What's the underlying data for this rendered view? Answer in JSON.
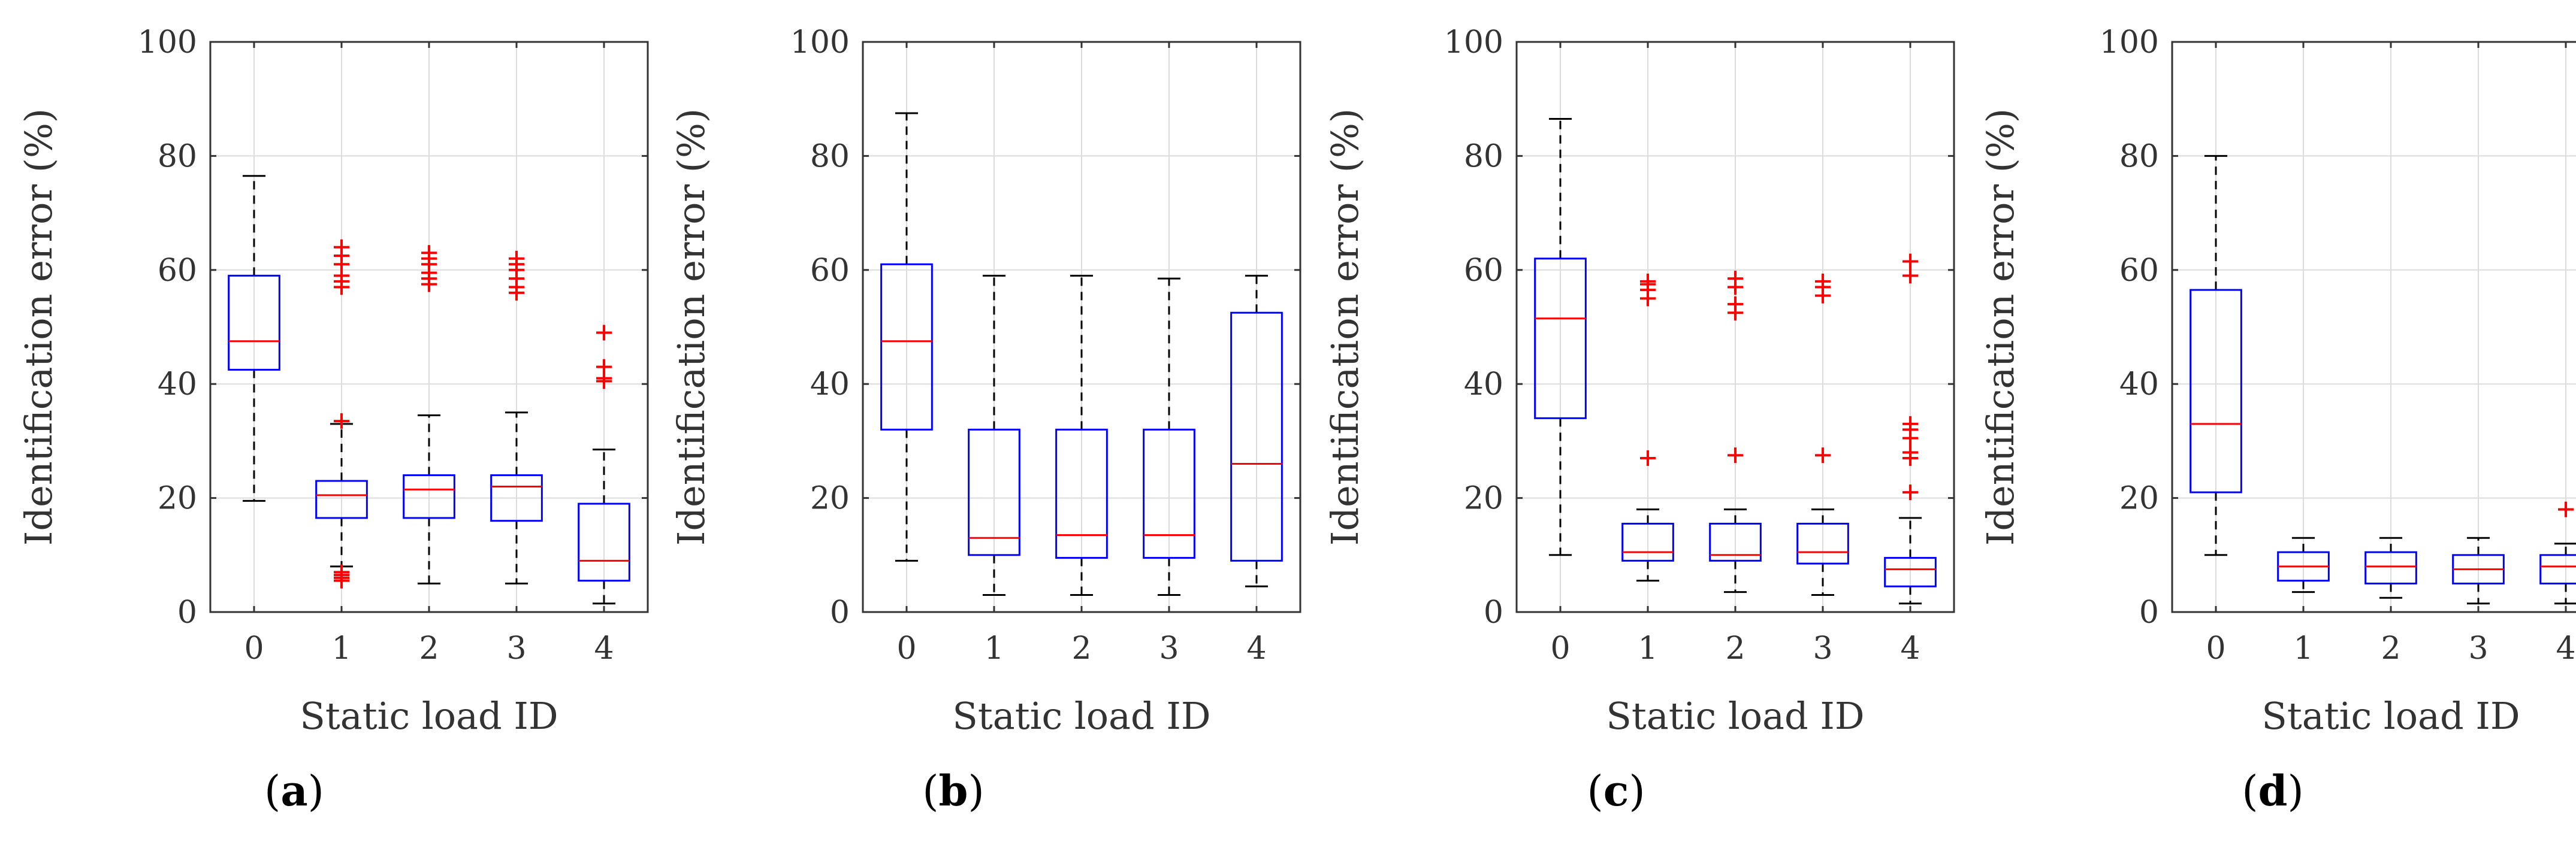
{
  "chart_data": [
    {
      "type": "box",
      "panel_label": "a",
      "xlabel": "Static load ID",
      "ylabel": "Identification error (%)",
      "ylim": [
        0,
        100
      ],
      "yticks": [
        0,
        20,
        40,
        60,
        80,
        100
      ],
      "categories": [
        "0",
        "1",
        "2",
        "3",
        "4"
      ],
      "grid": true,
      "boxes": [
        {
          "category": "0",
          "whisker_low": 19.5,
          "q1": 42.5,
          "median": 47.5,
          "q3": 59,
          "whisker_high": 76.5,
          "outliers": []
        },
        {
          "category": "1",
          "whisker_low": 8,
          "q1": 16.5,
          "median": 20.5,
          "q3": 23,
          "whisker_high": 33,
          "outliers": [
            5.5,
            6,
            6.5,
            7,
            33.5,
            57,
            58,
            59,
            61,
            62.5,
            64
          ]
        },
        {
          "category": "2",
          "whisker_low": 5,
          "q1": 16.5,
          "median": 21.5,
          "q3": 24,
          "whisker_high": 34.5,
          "outliers": [
            57.5,
            58.5,
            59.5,
            61,
            62,
            63
          ]
        },
        {
          "category": "3",
          "whisker_low": 5,
          "q1": 16,
          "median": 22,
          "q3": 24,
          "whisker_high": 35,
          "outliers": [
            56,
            57,
            58.5,
            60,
            61,
            62
          ]
        },
        {
          "category": "4",
          "whisker_low": 1.5,
          "q1": 5.5,
          "median": 9,
          "q3": 19,
          "whisker_high": 28.5,
          "outliers": [
            40.5,
            41,
            43,
            49
          ]
        }
      ]
    },
    {
      "type": "box",
      "panel_label": "b",
      "xlabel": "Static load ID",
      "ylabel": "Identification error (%)",
      "ylim": [
        0,
        100
      ],
      "yticks": [
        0,
        20,
        40,
        60,
        80,
        100
      ],
      "categories": [
        "0",
        "1",
        "2",
        "3",
        "4"
      ],
      "grid": true,
      "boxes": [
        {
          "category": "0",
          "whisker_low": 9,
          "q1": 32,
          "median": 47.5,
          "q3": 61,
          "whisker_high": 87.5,
          "outliers": []
        },
        {
          "category": "1",
          "whisker_low": 3,
          "q1": 10,
          "median": 13,
          "q3": 32,
          "whisker_high": 59,
          "outliers": []
        },
        {
          "category": "2",
          "whisker_low": 3,
          "q1": 9.5,
          "median": 13.5,
          "q3": 32,
          "whisker_high": 59,
          "outliers": []
        },
        {
          "category": "3",
          "whisker_low": 3,
          "q1": 9.5,
          "median": 13.5,
          "q3": 32,
          "whisker_high": 58.5,
          "outliers": []
        },
        {
          "category": "4",
          "whisker_low": 4.5,
          "q1": 9,
          "median": 26,
          "q3": 52.5,
          "whisker_high": 59,
          "outliers": []
        }
      ]
    },
    {
      "type": "box",
      "panel_label": "c",
      "xlabel": "Static load ID",
      "ylabel": "Identification error (%)",
      "ylim": [
        0,
        100
      ],
      "yticks": [
        0,
        20,
        40,
        60,
        80,
        100
      ],
      "categories": [
        "0",
        "1",
        "2",
        "3",
        "4"
      ],
      "grid": true,
      "boxes": [
        {
          "category": "0",
          "whisker_low": 10,
          "q1": 34,
          "median": 51.5,
          "q3": 62,
          "whisker_high": 86.5,
          "outliers": []
        },
        {
          "category": "1",
          "whisker_low": 5.5,
          "q1": 9,
          "median": 10.5,
          "q3": 15.5,
          "whisker_high": 18,
          "outliers": [
            27,
            55,
            56.5,
            57.5,
            58
          ]
        },
        {
          "category": "2",
          "whisker_low": 3.5,
          "q1": 9,
          "median": 10,
          "q3": 15.5,
          "whisker_high": 18,
          "outliers": [
            27.5,
            52.5,
            54,
            57,
            58.5
          ]
        },
        {
          "category": "3",
          "whisker_low": 3,
          "q1": 8.5,
          "median": 10.5,
          "q3": 15.5,
          "whisker_high": 18,
          "outliers": [
            27.5,
            55.5,
            57,
            58
          ]
        },
        {
          "category": "4",
          "whisker_low": 1.5,
          "q1": 4.5,
          "median": 7.5,
          "q3": 9.5,
          "whisker_high": 16.5,
          "outliers": [
            21,
            27,
            28,
            30.5,
            32,
            33,
            59,
            61.5
          ]
        }
      ]
    },
    {
      "type": "box",
      "panel_label": "d",
      "xlabel": "Static load ID",
      "ylabel": "Identification error (%)",
      "ylim": [
        0,
        100
      ],
      "yticks": [
        0,
        20,
        40,
        60,
        80,
        100
      ],
      "categories": [
        "0",
        "1",
        "2",
        "3",
        "4"
      ],
      "grid": true,
      "boxes": [
        {
          "category": "0",
          "whisker_low": 10,
          "q1": 21,
          "median": 33,
          "q3": 56.5,
          "whisker_high": 80,
          "outliers": []
        },
        {
          "category": "1",
          "whisker_low": 3.5,
          "q1": 5.5,
          "median": 8,
          "q3": 10.5,
          "whisker_high": 13,
          "outliers": []
        },
        {
          "category": "2",
          "whisker_low": 2.5,
          "q1": 5,
          "median": 8,
          "q3": 10.5,
          "whisker_high": 13,
          "outliers": []
        },
        {
          "category": "3",
          "whisker_low": 1.5,
          "q1": 5,
          "median": 7.5,
          "q3": 10,
          "whisker_high": 13,
          "outliers": []
        },
        {
          "category": "4",
          "whisker_low": 1.5,
          "q1": 5,
          "median": 8,
          "q3": 10,
          "whisker_high": 12,
          "outliers": [
            18
          ]
        }
      ]
    }
  ],
  "colors": {
    "box": "#0000ff",
    "median": "#ff0000",
    "outlier": "#ff0000",
    "whisker": "#000000",
    "grid": "#dcdcdc",
    "axis": "#333333"
  },
  "captions": [
    "(a)",
    "(b)",
    "(c)",
    "(d)"
  ]
}
